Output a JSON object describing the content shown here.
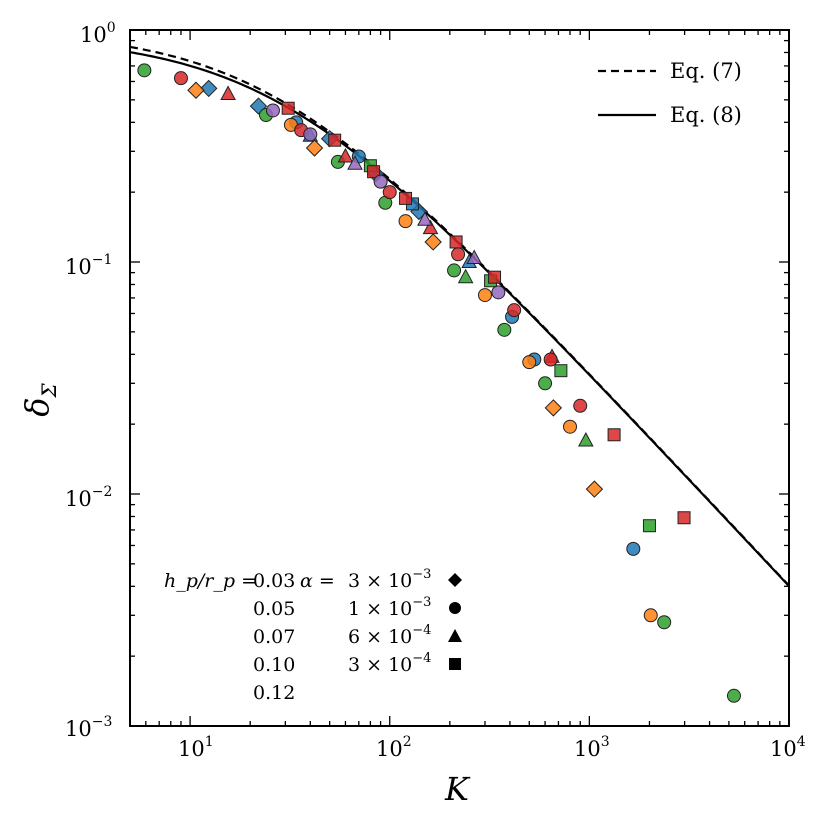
{
  "chart_data": {
    "type": "scatter",
    "xscale": "log",
    "yscale": "log",
    "xlim": [
      5,
      10000
    ],
    "ylim": [
      0.001,
      1
    ],
    "xlabel": "K",
    "ylabel_base": "δ",
    "ylabel_sub": "Σ",
    "x_ticks": [
      {
        "base": "10",
        "exp": "1"
      },
      {
        "base": "10",
        "exp": "2"
      },
      {
        "base": "10",
        "exp": "3"
      },
      {
        "base": "10",
        "exp": "4"
      }
    ],
    "y_ticks": [
      {
        "base": "10",
        "exp": "0"
      },
      {
        "base": "10",
        "exp": "−1"
      },
      {
        "base": "10",
        "exp": "−2"
      },
      {
        "base": "10",
        "exp": "−3"
      }
    ],
    "legend": [
      {
        "label": "Eq. (7)",
        "style": "dashed"
      },
      {
        "label": "Eq. (8)",
        "style": "solid"
      }
    ],
    "curves": [
      {
        "name": "Eq. (7)",
        "style": "dashed",
        "a": 0.04,
        "b": 5.0
      },
      {
        "name": "Eq. (8)",
        "style": "solid",
        "a": 0.0475,
        "b": 4.7
      }
    ],
    "aspect_label": "h_p/r_p =",
    "alpha_label": "α =",
    "aspect_values": [
      {
        "value": "0.03",
        "color": "#1f77b4"
      },
      {
        "value": "0.05",
        "color": "#ff7f0e"
      },
      {
        "value": "0.07",
        "color": "#2ca02c"
      },
      {
        "value": "0.10",
        "color": "#d62728"
      },
      {
        "value": "0.12",
        "color": "#9467bd"
      }
    ],
    "alpha_values": [
      {
        "value": "3 × 10",
        "exp": "−3",
        "marker": "diamond"
      },
      {
        "value": "1 × 10",
        "exp": "−3",
        "marker": "circle"
      },
      {
        "value": "6 × 10",
        "exp": "−4",
        "marker": "triangle"
      },
      {
        "value": "3 × 10",
        "exp": "−4",
        "marker": "square"
      }
    ],
    "points": [
      {
        "x": 12.4,
        "y": 0.56,
        "c": 0,
        "m": "diamond"
      },
      {
        "x": 22.0,
        "y": 0.47,
        "c": 0,
        "m": "diamond"
      },
      {
        "x": 50.0,
        "y": 0.34,
        "c": 0,
        "m": "diamond"
      },
      {
        "x": 85.0,
        "y": 0.24,
        "c": 0,
        "m": "diamond"
      },
      {
        "x": 140.0,
        "y": 0.165,
        "c": 0,
        "m": "diamond"
      },
      {
        "x": 34.0,
        "y": 0.4,
        "c": 0,
        "m": "circle"
      },
      {
        "x": 70.0,
        "y": 0.285,
        "c": 0,
        "m": "circle"
      },
      {
        "x": 410.0,
        "y": 0.058,
        "c": 0,
        "m": "circle"
      },
      {
        "x": 530.0,
        "y": 0.038,
        "c": 0,
        "m": "circle"
      },
      {
        "x": 1660.0,
        "y": 0.0058,
        "c": 0,
        "m": "circle"
      },
      {
        "x": 40.0,
        "y": 0.35,
        "c": 0,
        "m": "triangle"
      },
      {
        "x": 250.0,
        "y": 0.1,
        "c": 0,
        "m": "triangle"
      },
      {
        "x": 130.0,
        "y": 0.178,
        "c": 0,
        "m": "square"
      },
      {
        "x": 10.7,
        "y": 0.55,
        "c": 1,
        "m": "diamond"
      },
      {
        "x": 42.0,
        "y": 0.31,
        "c": 1,
        "m": "diamond"
      },
      {
        "x": 165.0,
        "y": 0.122,
        "c": 1,
        "m": "diamond"
      },
      {
        "x": 660.0,
        "y": 0.0235,
        "c": 1,
        "m": "diamond"
      },
      {
        "x": 1060.0,
        "y": 0.0105,
        "c": 1,
        "m": "diamond"
      },
      {
        "x": 32.0,
        "y": 0.39,
        "c": 1,
        "m": "circle"
      },
      {
        "x": 120.0,
        "y": 0.15,
        "c": 1,
        "m": "circle"
      },
      {
        "x": 300.0,
        "y": 0.072,
        "c": 1,
        "m": "circle"
      },
      {
        "x": 500.0,
        "y": 0.037,
        "c": 1,
        "m": "circle"
      },
      {
        "x": 800.0,
        "y": 0.0195,
        "c": 1,
        "m": "circle"
      },
      {
        "x": 2030.0,
        "y": 0.003,
        "c": 1,
        "m": "circle"
      },
      {
        "x": 5.9,
        "y": 0.67,
        "c": 2,
        "m": "circle"
      },
      {
        "x": 24.0,
        "y": 0.43,
        "c": 2,
        "m": "circle"
      },
      {
        "x": 55.0,
        "y": 0.27,
        "c": 2,
        "m": "circle"
      },
      {
        "x": 95.0,
        "y": 0.18,
        "c": 2,
        "m": "circle"
      },
      {
        "x": 210.0,
        "y": 0.092,
        "c": 2,
        "m": "circle"
      },
      {
        "x": 375.0,
        "y": 0.051,
        "c": 2,
        "m": "circle"
      },
      {
        "x": 600.0,
        "y": 0.03,
        "c": 2,
        "m": "circle"
      },
      {
        "x": 2370.0,
        "y": 0.0028,
        "c": 2,
        "m": "circle"
      },
      {
        "x": 5300.0,
        "y": 0.00135,
        "c": 2,
        "m": "circle"
      },
      {
        "x": 240.0,
        "y": 0.086,
        "c": 2,
        "m": "triangle"
      },
      {
        "x": 960.0,
        "y": 0.017,
        "c": 2,
        "m": "triangle"
      },
      {
        "x": 80.0,
        "y": 0.26,
        "c": 2,
        "m": "square"
      },
      {
        "x": 320.0,
        "y": 0.083,
        "c": 2,
        "m": "square"
      },
      {
        "x": 720.0,
        "y": 0.034,
        "c": 2,
        "m": "square"
      },
      {
        "x": 2000.0,
        "y": 0.0073,
        "c": 2,
        "m": "square"
      },
      {
        "x": 15.5,
        "y": 0.53,
        "c": 3,
        "m": "triangle"
      },
      {
        "x": 60.0,
        "y": 0.285,
        "c": 3,
        "m": "triangle"
      },
      {
        "x": 160.0,
        "y": 0.14,
        "c": 3,
        "m": "triangle"
      },
      {
        "x": 650.0,
        "y": 0.039,
        "c": 3,
        "m": "triangle"
      },
      {
        "x": 9.0,
        "y": 0.62,
        "c": 3,
        "m": "circle"
      },
      {
        "x": 36.0,
        "y": 0.37,
        "c": 3,
        "m": "circle"
      },
      {
        "x": 100.0,
        "y": 0.2,
        "c": 3,
        "m": "circle"
      },
      {
        "x": 220.0,
        "y": 0.108,
        "c": 3,
        "m": "circle"
      },
      {
        "x": 420.0,
        "y": 0.062,
        "c": 3,
        "m": "circle"
      },
      {
        "x": 640.0,
        "y": 0.038,
        "c": 3,
        "m": "circle"
      },
      {
        "x": 900.0,
        "y": 0.024,
        "c": 3,
        "m": "circle"
      },
      {
        "x": 31.0,
        "y": 0.46,
        "c": 3,
        "m": "square"
      },
      {
        "x": 53.0,
        "y": 0.335,
        "c": 3,
        "m": "square"
      },
      {
        "x": 83.0,
        "y": 0.245,
        "c": 3,
        "m": "square"
      },
      {
        "x": 120.0,
        "y": 0.188,
        "c": 3,
        "m": "square"
      },
      {
        "x": 215.0,
        "y": 0.122,
        "c": 3,
        "m": "square"
      },
      {
        "x": 335.0,
        "y": 0.086,
        "c": 3,
        "m": "square"
      },
      {
        "x": 1330.0,
        "y": 0.018,
        "c": 3,
        "m": "square"
      },
      {
        "x": 2980.0,
        "y": 0.0079,
        "c": 3,
        "m": "square"
      },
      {
        "x": 26.0,
        "y": 0.45,
        "c": 4,
        "m": "circle"
      },
      {
        "x": 40.0,
        "y": 0.355,
        "c": 4,
        "m": "circle"
      },
      {
        "x": 90.0,
        "y": 0.222,
        "c": 4,
        "m": "circle"
      },
      {
        "x": 350.0,
        "y": 0.074,
        "c": 4,
        "m": "circle"
      },
      {
        "x": 67.0,
        "y": 0.265,
        "c": 4,
        "m": "triangle"
      },
      {
        "x": 150.0,
        "y": 0.152,
        "c": 4,
        "m": "triangle"
      },
      {
        "x": 265.0,
        "y": 0.104,
        "c": 4,
        "m": "triangle"
      }
    ]
  }
}
